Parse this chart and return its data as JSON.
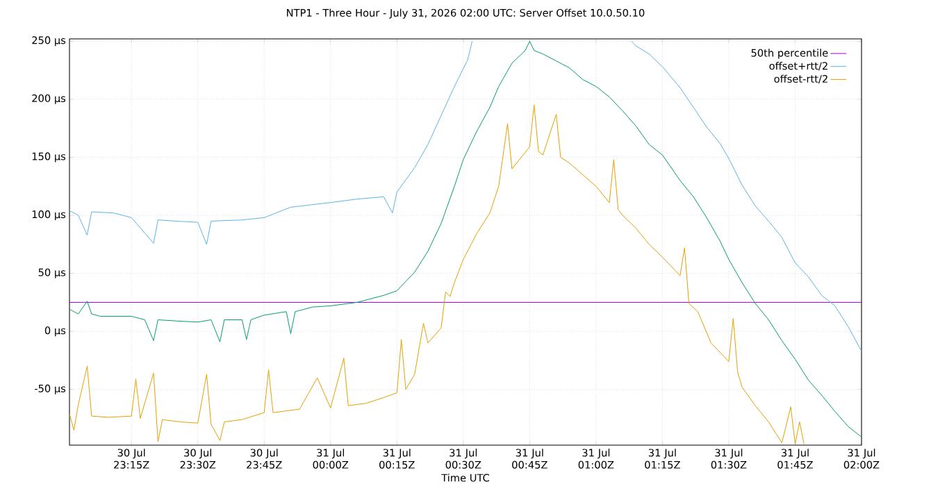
{
  "chart_data": {
    "type": "line",
    "title": "NTP1 - Three Hour - July 31, 2026 02:00 UTC: Server Offset 10.0.50.10",
    "xlabel": "Time UTC",
    "xlim": [
      "2026-07-30T23:01",
      "2026-07-31T02:00"
    ],
    "ylim": [
      -98,
      252
    ],
    "xticks": [
      {
        "value": "2026-07-30T23:15",
        "label": "30 Jul 23:15Z"
      },
      {
        "value": "2026-07-30T23:30",
        "label": "30 Jul 23:30Z"
      },
      {
        "value": "2026-07-30T23:45",
        "label": "30 Jul 23:45Z"
      },
      {
        "value": "2026-07-31T00:00",
        "label": "31 Jul 00:00Z"
      },
      {
        "value": "2026-07-31T00:15",
        "label": "31 Jul 00:15Z"
      },
      {
        "value": "2026-07-31T00:30",
        "label": "31 Jul 00:30Z"
      },
      {
        "value": "2026-07-31T00:45",
        "label": "31 Jul 00:45Z"
      },
      {
        "value": "2026-07-31T01:00",
        "label": "31 Jul 01:00Z"
      },
      {
        "value": "2026-07-31T01:15",
        "label": "31 Jul 01:15Z"
      },
      {
        "value": "2026-07-31T01:30",
        "label": "31 Jul 01:30Z"
      },
      {
        "value": "2026-07-31T01:45",
        "label": "31 Jul 01:45Z"
      },
      {
        "value": "2026-07-31T02:00",
        "label": "31 Jul 02:00Z"
      }
    ],
    "yticks": [
      {
        "value": -50,
        "label": "-50 µs"
      },
      {
        "value": 0,
        "label": "0 µs"
      },
      {
        "value": 50,
        "label": "50 µs"
      },
      {
        "value": 100,
        "label": "100 µs"
      },
      {
        "value": 150,
        "label": "150 µs"
      },
      {
        "value": 200,
        "label": "200 µs"
      },
      {
        "value": 250,
        "label": "250 µs"
      }
    ],
    "grid": true,
    "legend": "top right",
    "line_style": "solid",
    "marker": "none",
    "series": [
      {
        "name": "50th percentile",
        "color": "#9400d3",
        "x": [
          "2026-07-30T23:01",
          "2026-07-31T02:00"
        ],
        "values": [
          25,
          25
        ]
      },
      {
        "color": "#009e73",
        "x": [
          "2026-07-30T23:01",
          "2026-07-30T23:03",
          "2026-07-30T23:05",
          "2026-07-30T23:06",
          "2026-07-30T23:08",
          "2026-07-30T23:11",
          "2026-07-30T23:15",
          "2026-07-30T23:18",
          "2026-07-30T23:20",
          "2026-07-30T23:21",
          "2026-07-30T23:25",
          "2026-07-30T23:30",
          "2026-07-30T23:33",
          "2026-07-30T23:35",
          "2026-07-30T23:36",
          "2026-07-30T23:40",
          "2026-07-30T23:41",
          "2026-07-30T23:42",
          "2026-07-30T23:45",
          "2026-07-30T23:50",
          "2026-07-30T23:51",
          "2026-07-30T23:52",
          "2026-07-30T23:56",
          "2026-07-31T00:00",
          "2026-07-31T00:06",
          "2026-07-31T00:12",
          "2026-07-31T00:15",
          "2026-07-31T00:19",
          "2026-07-31T00:22",
          "2026-07-31T00:25",
          "2026-07-31T00:28",
          "2026-07-31T00:30",
          "2026-07-31T00:33",
          "2026-07-31T00:36",
          "2026-07-31T00:38",
          "2026-07-31T00:41",
          "2026-07-31T00:44",
          "2026-07-31T00:45",
          "2026-07-31T00:46",
          "2026-07-31T00:48",
          "2026-07-31T00:51",
          "2026-07-31T00:54",
          "2026-07-31T00:57",
          "2026-07-31T01:00",
          "2026-07-31T01:03",
          "2026-07-31T01:06",
          "2026-07-31T01:09",
          "2026-07-31T01:12",
          "2026-07-31T01:15",
          "2026-07-31T01:19",
          "2026-07-31T01:22",
          "2026-07-31T01:25",
          "2026-07-31T01:28",
          "2026-07-31T01:30",
          "2026-07-31T01:33",
          "2026-07-31T01:36",
          "2026-07-31T01:39",
          "2026-07-31T01:42",
          "2026-07-31T01:45",
          "2026-07-31T01:48",
          "2026-07-31T01:51",
          "2026-07-31T01:54",
          "2026-07-31T01:57",
          "2026-07-31T02:00"
        ],
        "values": [
          19,
          15,
          26,
          15,
          13,
          13,
          13,
          10,
          -8,
          10,
          9,
          8,
          10,
          -9,
          10,
          10,
          -7,
          10,
          14,
          17,
          -2,
          17,
          21,
          22,
          25,
          31,
          35,
          51,
          69,
          93,
          125,
          148,
          172,
          193,
          211,
          231,
          242,
          250,
          242,
          239,
          233,
          227,
          217,
          211,
          202,
          190,
          177,
          161,
          152,
          130,
          116,
          98,
          78,
          62,
          42,
          24,
          10,
          -8,
          -24,
          -42,
          -55,
          -69,
          -82,
          -91
        ]
      },
      {
        "name": "offset+rtt/2",
        "color": "#56b4e9",
        "x": [
          "2026-07-30T23:01",
          "2026-07-30T23:03",
          "2026-07-30T23:05",
          "2026-07-30T23:06",
          "2026-07-30T23:11",
          "2026-07-30T23:15",
          "2026-07-30T23:20",
          "2026-07-30T23:21",
          "2026-07-30T23:25",
          "2026-07-30T23:30",
          "2026-07-30T23:32",
          "2026-07-30T23:33",
          "2026-07-30T23:40",
          "2026-07-30T23:45",
          "2026-07-30T23:51",
          "2026-07-31T00:00",
          "2026-07-31T00:06",
          "2026-07-31T00:12",
          "2026-07-31T00:14",
          "2026-07-31T00:15",
          "2026-07-31T00:19",
          "2026-07-31T00:22",
          "2026-07-31T00:25",
          "2026-07-31T00:28",
          "2026-07-31T00:31",
          "2026-07-31T00:32",
          "2026-07-31T00:33",
          "2026-07-31T01:08",
          "2026-07-31T01:09",
          "2026-07-31T01:12",
          "2026-07-31T01:15",
          "2026-07-31T01:19",
          "2026-07-31T01:22",
          "2026-07-31T01:25",
          "2026-07-31T01:28",
          "2026-07-31T01:30",
          "2026-07-31T01:33",
          "2026-07-31T01:36",
          "2026-07-31T01:39",
          "2026-07-31T01:42",
          "2026-07-31T01:45",
          "2026-07-31T01:48",
          "2026-07-31T01:51",
          "2026-07-31T01:54",
          "2026-07-31T01:57",
          "2026-07-31T02:00"
        ],
        "values": [
          104,
          100,
          83,
          103,
          102,
          98,
          76,
          96,
          95,
          94,
          75,
          95,
          96,
          98,
          107,
          111,
          114,
          116,
          102,
          120,
          141,
          161,
          186,
          211,
          234,
          250,
          null,
          250,
          246,
          239,
          228,
          210,
          193,
          176,
          162,
          149,
          126,
          108,
          95,
          81,
          59,
          47,
          31,
          22,
          4,
          -17
        ]
      },
      {
        "name": "offset-rtt/2",
        "color": "#e69f00",
        "x": [
          "2026-07-30T23:01",
          "2026-07-30T23:02",
          "2026-07-30T23:03",
          "2026-07-30T23:05",
          "2026-07-30T23:06",
          "2026-07-30T23:10",
          "2026-07-30T23:15",
          "2026-07-30T23:16",
          "2026-07-30T23:17",
          "2026-07-30T23:20",
          "2026-07-30T23:21",
          "2026-07-30T23:22",
          "2026-07-30T23:26",
          "2026-07-30T23:30",
          "2026-07-30T23:32",
          "2026-07-30T23:33",
          "2026-07-30T23:35",
          "2026-07-30T23:36",
          "2026-07-30T23:40",
          "2026-07-30T23:45",
          "2026-07-30T23:46",
          "2026-07-30T23:47",
          "2026-07-30T23:53",
          "2026-07-30T23:57",
          "2026-07-31T00:00",
          "2026-07-31T00:03",
          "2026-07-31T00:04",
          "2026-07-31T00:08",
          "2026-07-31T00:12",
          "2026-07-31T00:15",
          "2026-07-31T00:16",
          "2026-07-31T00:17",
          "2026-07-31T00:19",
          "2026-07-31T00:21",
          "2026-07-31T00:22",
          "2026-07-31T00:25",
          "2026-07-31T00:26",
          "2026-07-31T00:27",
          "2026-07-31T00:28",
          "2026-07-31T00:30",
          "2026-07-31T00:33",
          "2026-07-31T00:36",
          "2026-07-31T00:38",
          "2026-07-31T00:40",
          "2026-07-31T00:41",
          "2026-07-31T00:45",
          "2026-07-31T00:46",
          "2026-07-31T00:47",
          "2026-07-31T00:48",
          "2026-07-31T00:51",
          "2026-07-31T00:52",
          "2026-07-31T00:54",
          "2026-07-31T01:00",
          "2026-07-31T01:03",
          "2026-07-31T01:04",
          "2026-07-31T01:05",
          "2026-07-31T01:06",
          "2026-07-31T01:09",
          "2026-07-31T01:12",
          "2026-07-31T01:15",
          "2026-07-31T01:19",
          "2026-07-31T01:20",
          "2026-07-31T01:21",
          "2026-07-31T01:23",
          "2026-07-31T01:26",
          "2026-07-31T01:30",
          "2026-07-31T01:31",
          "2026-07-31T01:32",
          "2026-07-31T01:33",
          "2026-07-31T01:36",
          "2026-07-31T01:39",
          "2026-07-31T01:42",
          "2026-07-31T01:44",
          "2026-07-31T01:45",
          "2026-07-31T01:46",
          "2026-07-31T01:47"
        ],
        "values": [
          -71,
          -85,
          -63,
          -30,
          -73,
          -74,
          -73,
          -41,
          -75,
          -36,
          -95,
          -76,
          -78,
          -79,
          -37,
          -80,
          -94,
          -78,
          -76,
          -70,
          -33,
          -70,
          -67,
          -40,
          -66,
          -23,
          -64,
          -62,
          -57,
          -53,
          -7,
          -50,
          -37,
          7,
          -10,
          3,
          34,
          30,
          42,
          62,
          84,
          102,
          125,
          179,
          140,
          159,
          195,
          155,
          152,
          187,
          150,
          145,
          125,
          111,
          148,
          105,
          100,
          89,
          75,
          64,
          48,
          72,
          24,
          17,
          -10,
          -26,
          11,
          -35,
          -48,
          -64,
          -78,
          -96,
          -65,
          -97,
          -78,
          -97
        ]
      }
    ]
  }
}
